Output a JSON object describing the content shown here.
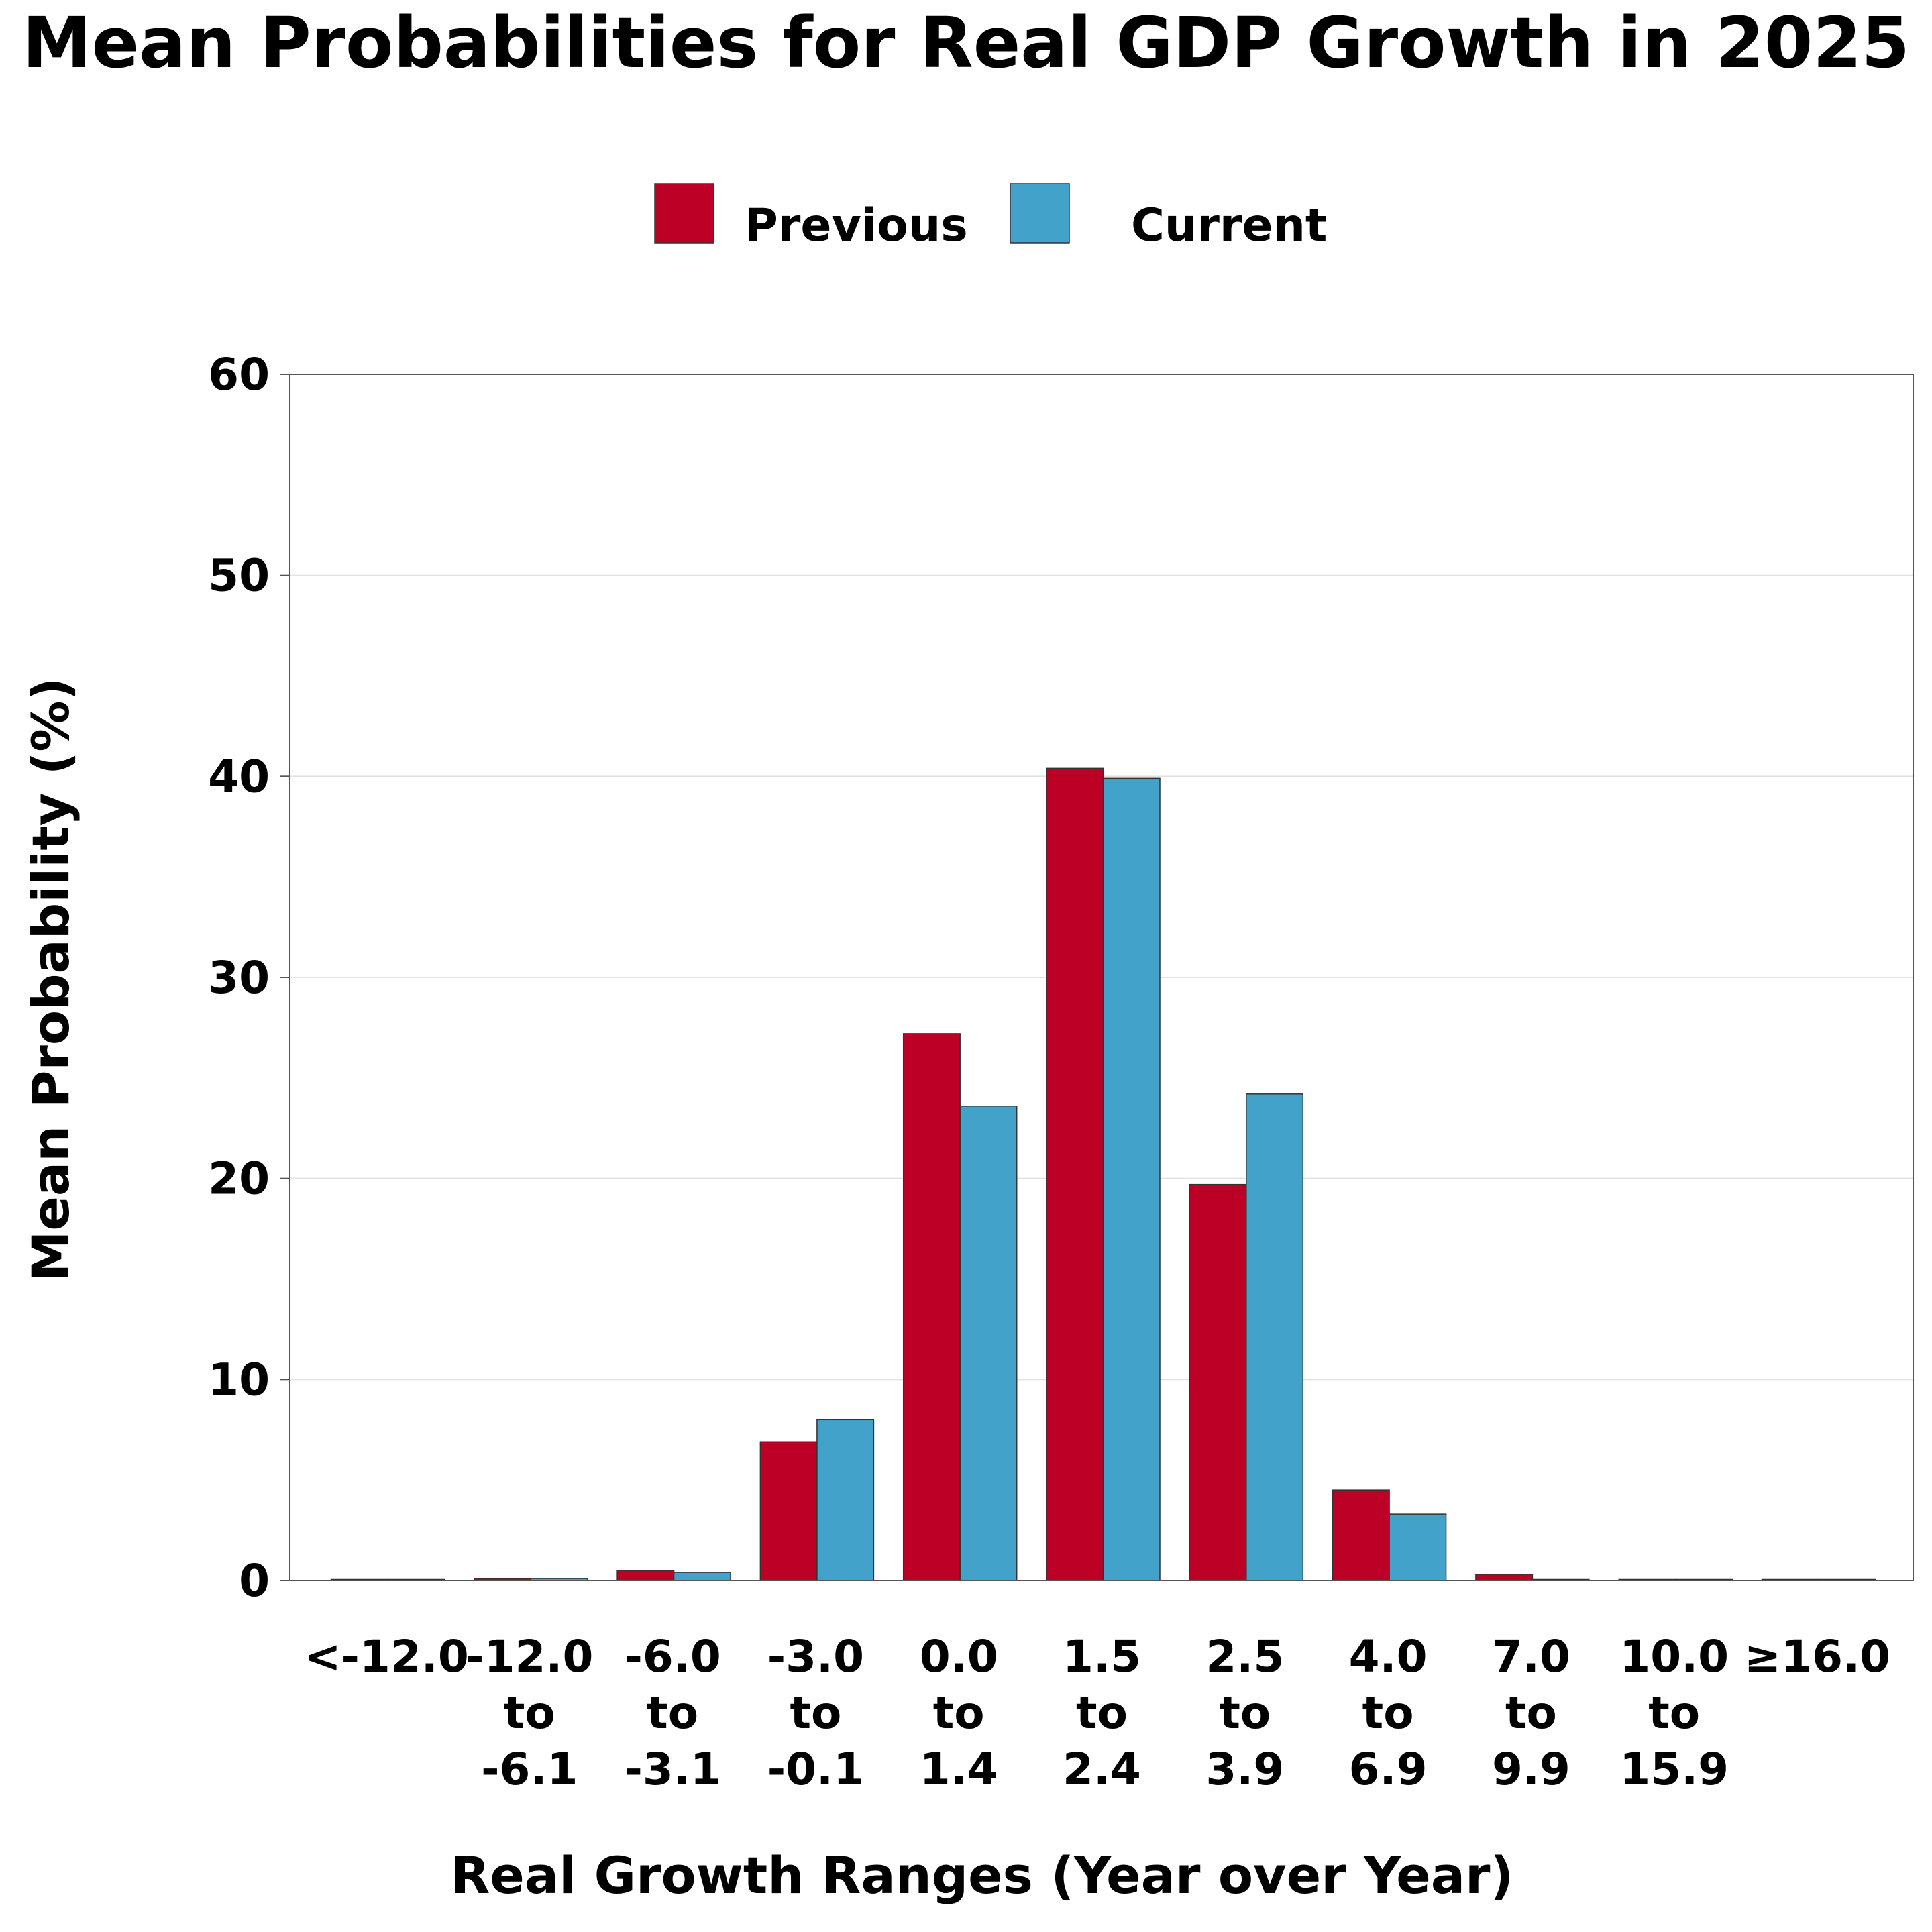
{
  "chart_data": {
    "type": "bar",
    "title": "Mean Probabilities for Real GDP Growth in 2025",
    "xlabel": "Real Growth Ranges (Year over Year)",
    "ylabel": "Mean Probability (%)",
    "ylim": [
      0,
      60
    ],
    "yticks": [
      0,
      10,
      20,
      30,
      40,
      50,
      60
    ],
    "grid": true,
    "legend_position": "top-center",
    "categories": [
      "<-12.0",
      "-12.0 to -6.1",
      "-6.0 to -3.1",
      "-3.0 to -0.1",
      "0.0 to 1.4",
      "1.5 to 2.4",
      "2.5 to 3.9",
      "4.0 to 6.9",
      "7.0 to 9.9",
      "10.0 to 15.9",
      "≥16.0"
    ],
    "category_lines": [
      [
        "<-12.0"
      ],
      [
        "-12.0",
        "to",
        "-6.1"
      ],
      [
        "-6.0",
        "to",
        "-3.1"
      ],
      [
        "-3.0",
        "to",
        "-0.1"
      ],
      [
        "0.0",
        "to",
        "1.4"
      ],
      [
        "1.5",
        "to",
        "2.4"
      ],
      [
        "2.5",
        "to",
        "3.9"
      ],
      [
        "4.0",
        "to",
        "6.9"
      ],
      [
        "7.0",
        "to",
        "9.9"
      ],
      [
        "10.0",
        "to",
        "15.9"
      ],
      [
        "≥16.0"
      ]
    ],
    "series": [
      {
        "name": "Previous",
        "color": "#BD0026",
        "values": [
          0.0,
          0.1,
          0.5,
          6.9,
          27.2,
          40.4,
          19.7,
          4.5,
          0.3,
          0.0,
          0.0
        ]
      },
      {
        "name": "Current",
        "color": "#43A2CA",
        "values": [
          0.0,
          0.1,
          0.4,
          8.0,
          23.6,
          39.9,
          24.2,
          3.3,
          0.0,
          0.0,
          0.0
        ]
      }
    ]
  }
}
